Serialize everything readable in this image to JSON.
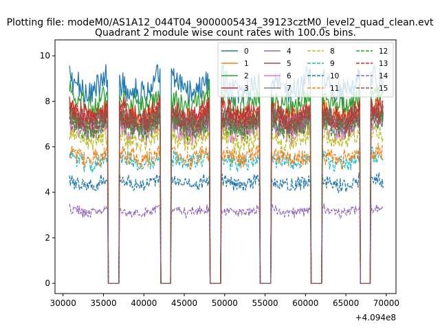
{
  "figure_title": "Plotting file: modeM0/AS1A12_044T04_9000005434_39123cztM0_level2_quad_clean.evt",
  "chart_data": {
    "type": "line",
    "title": "Quadrant 2 module wise count rates with 100.0s bins.",
    "xlabel": "",
    "ylabel": "",
    "offset_label": "+4.094e8",
    "xlim": [
      29000,
      71200
    ],
    "ylim": [
      -0.45,
      10.7
    ],
    "xticks": [
      30000,
      35000,
      40000,
      45000,
      50000,
      55000,
      60000,
      65000,
      70000
    ],
    "xtick_labels": [
      "30000",
      "35000",
      "40000",
      "45000",
      "50000",
      "55000",
      "60000",
      "65000",
      "70000"
    ],
    "yticks": [
      0,
      2,
      4,
      6,
      8,
      10
    ],
    "ytick_labels": [
      "0",
      "2",
      "4",
      "6",
      "8",
      "10"
    ],
    "bin_seconds": 100,
    "time_range": [
      30800,
      69600
    ],
    "gaps": [
      [
        35600,
        36900
      ],
      [
        42100,
        43300
      ],
      [
        48200,
        49500
      ],
      [
        54400,
        55700
      ],
      [
        60700,
        62000
      ],
      [
        66800,
        68000
      ]
    ],
    "legend": {
      "placement": "top-right",
      "ncol": 4
    },
    "series": [
      {
        "name": "0",
        "color": "#1f77b4",
        "dashed": false,
        "base": 9.0
      },
      {
        "name": "1",
        "color": "#ff7f0e",
        "dashed": false,
        "base": 7.6
      },
      {
        "name": "2",
        "color": "#2ca02c",
        "dashed": false,
        "base": 8.3
      },
      {
        "name": "3",
        "color": "#d62728",
        "dashed": false,
        "base": 7.8
      },
      {
        "name": "4",
        "color": "#9467bd",
        "dashed": false,
        "base": 7.3
      },
      {
        "name": "5",
        "color": "#8c564b",
        "dashed": false,
        "base": 7.5
      },
      {
        "name": "6",
        "color": "#e377c2",
        "dashed": false,
        "base": 7.0
      },
      {
        "name": "7",
        "color": "#7f7f7f",
        "dashed": false,
        "base": 7.4
      },
      {
        "name": "8",
        "color": "#bcbd22",
        "dashed": true,
        "base": 6.6
      },
      {
        "name": "9",
        "color": "#17becf",
        "dashed": true,
        "base": 5.6
      },
      {
        "name": "10",
        "color": "#1f77b4",
        "dashed": true,
        "base": 4.6
      },
      {
        "name": "11",
        "color": "#ff7f0e",
        "dashed": true,
        "base": 5.8
      },
      {
        "name": "12",
        "color": "#2ca02c",
        "dashed": true,
        "base": 7.2
      },
      {
        "name": "13",
        "color": "#d62728",
        "dashed": true,
        "base": 7.6
      },
      {
        "name": "14",
        "color": "#9467bd",
        "dashed": true,
        "base": 3.3
      },
      {
        "name": "15",
        "color": "#8c564b",
        "dashed": true,
        "base": 7.4
      }
    ]
  }
}
